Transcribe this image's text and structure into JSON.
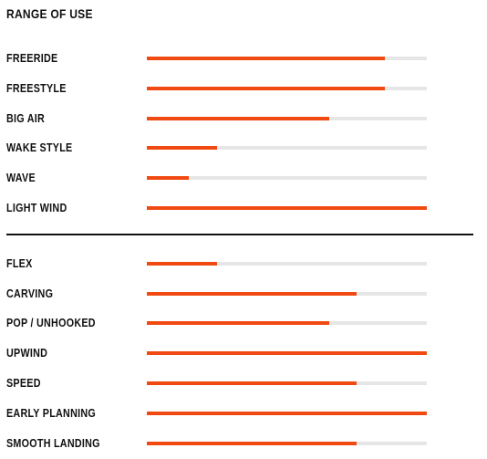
{
  "title": "RANGE OF USE",
  "colors": {
    "accent": "#f04a12",
    "track": "#e6e6e6",
    "text": "#111111",
    "divider": "#111111"
  },
  "range_of_use": [
    {
      "label": "FREERIDE",
      "value": 0.85
    },
    {
      "label": "FREESTYLE",
      "value": 0.85
    },
    {
      "label": "BIG AIR",
      "value": 0.65
    },
    {
      "label": "WAKE STYLE",
      "value": 0.25
    },
    {
      "label": "WAVE",
      "value": 0.15
    },
    {
      "label": "LIGHT WIND",
      "value": 1.0
    }
  ],
  "characteristics": [
    {
      "label": "FLEX",
      "value": 0.25
    },
    {
      "label": "CARVING",
      "value": 0.75
    },
    {
      "label": "POP / UNHOOKED",
      "value": 0.65
    },
    {
      "label": "UPWIND",
      "value": 1.0
    },
    {
      "label": "SPEED",
      "value": 0.75
    },
    {
      "label": "EARLY PLANNING",
      "value": 1.0
    },
    {
      "label": "SMOOTH LANDING",
      "value": 0.75
    }
  ]
}
